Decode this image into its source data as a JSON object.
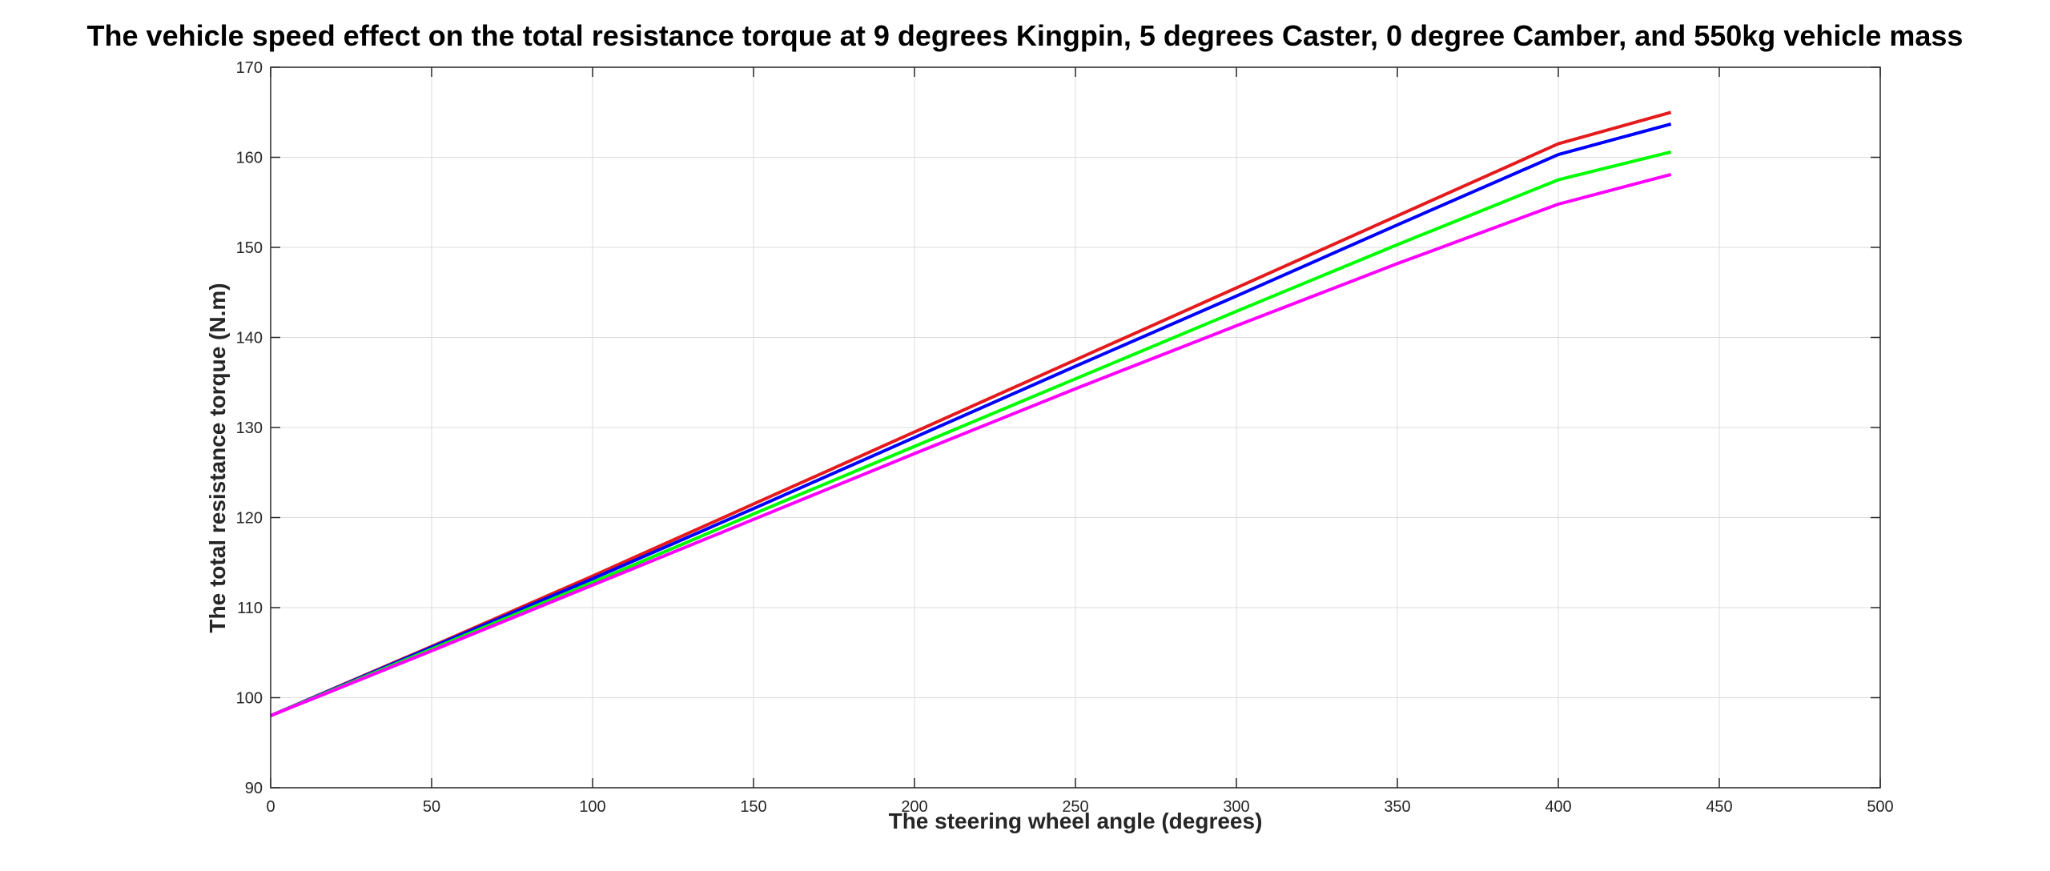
{
  "chart_data": {
    "type": "line",
    "title": "The vehicle speed effect on the total resistance torque at 9 degrees Kingpin, 5 degrees Caster, 0 degree Camber, and 550kg vehicle mass",
    "xlabel": "The steering wheel angle (degrees)",
    "ylabel": "The total resistance torque (N.m)",
    "xlim": [
      0,
      500
    ],
    "ylim": [
      90,
      170
    ],
    "xticks": [
      0,
      50,
      100,
      150,
      200,
      250,
      300,
      350,
      400,
      450,
      500
    ],
    "yticks": [
      90,
      100,
      110,
      120,
      130,
      140,
      150,
      160,
      170
    ],
    "grid": true,
    "legend": "none",
    "x": [
      0,
      50,
      100,
      150,
      200,
      250,
      300,
      350,
      400,
      435
    ],
    "series": [
      {
        "color": "#e41a1c",
        "values": [
          98.0,
          105.7,
          113.5,
          121.5,
          129.5,
          137.5,
          145.5,
          153.5,
          161.5,
          165.0
        ]
      },
      {
        "color": "#0000ff",
        "values": [
          98.0,
          105.6,
          113.2,
          121.0,
          128.9,
          136.8,
          144.6,
          152.5,
          160.3,
          163.7
        ]
      },
      {
        "color": "#00ff00",
        "values": [
          98.0,
          105.4,
          112.8,
          120.4,
          127.9,
          135.4,
          142.9,
          150.3,
          157.5,
          160.6
        ]
      },
      {
        "color": "#ff00ff",
        "values": [
          98.0,
          105.2,
          112.5,
          119.8,
          127.1,
          134.3,
          141.3,
          148.2,
          154.8,
          158.1
        ]
      }
    ]
  }
}
